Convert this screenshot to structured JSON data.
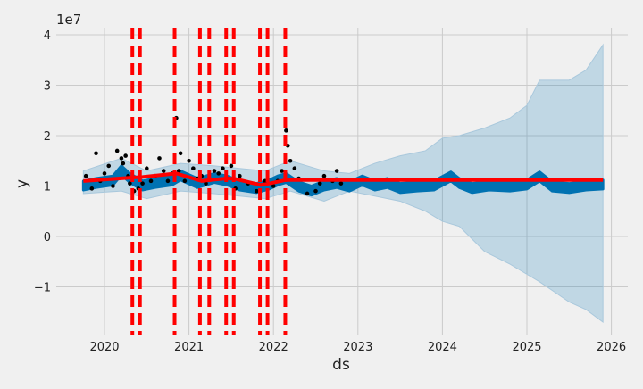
{
  "chart_data": {
    "type": "line",
    "title": "",
    "xlabel": "ds",
    "ylabel": "y",
    "y_scale_label": "1e7",
    "xlim": [
      2019.5,
      2026.2
    ],
    "ylim": [
      -1.95,
      4.15
    ],
    "y_unit": 10000000,
    "x_ticks": [
      2020,
      2021,
      2022,
      2023,
      2024,
      2025,
      2026
    ],
    "x_tick_labels": [
      "2020",
      "2021",
      "2022",
      "2023",
      "2024",
      "2025",
      "2026"
    ],
    "y_ticks": [
      -1,
      0,
      1,
      2,
      3,
      4
    ],
    "y_tick_labels": [
      "−1",
      "0",
      "1",
      "2",
      "3",
      "4"
    ],
    "grid": true,
    "legend": null,
    "colors": {
      "background": "#f0f0f0",
      "grid": "#cbcbcb",
      "observed": "#000000",
      "forecast": "#0072b2",
      "uncertainty": "#0072b2",
      "uncertainty_opacity": 0.2,
      "trend": "#ff0000",
      "changepoint": "#ff0000"
    },
    "series": [
      {
        "name": "trend",
        "x": [
          2019.75,
          2020.35,
          2020.45,
          2020.85,
          2021.15,
          2021.25,
          2021.45,
          2021.55,
          2021.85,
          2021.95,
          2022.15,
          2025.9
        ],
        "values": [
          1.1,
          1.17,
          1.18,
          1.25,
          1.1,
          1.12,
          1.15,
          1.14,
          1.02,
          1.05,
          1.12,
          1.12
        ]
      },
      {
        "name": "yhat",
        "x": [
          2019.75,
          2019.9,
          2020.1,
          2020.2,
          2020.3,
          2020.45,
          2020.6,
          2020.8,
          2020.9,
          2021.1,
          2021.2,
          2021.3,
          2021.45,
          2021.6,
          2021.8,
          2021.95,
          2022.05,
          2022.15,
          2022.3,
          2022.45,
          2022.6,
          2022.75,
          2022.9,
          2023.05,
          2023.2,
          2023.35,
          2023.5,
          2023.7,
          2023.9,
          2024.1,
          2024.2,
          2024.35,
          2024.55,
          2024.8,
          2025.0,
          2025.15,
          2025.3,
          2025.5,
          2025.7,
          2025.9
        ],
        "values": [
          1.1,
          1.15,
          1.2,
          1.4,
          1.25,
          1.1,
          1.15,
          1.2,
          1.3,
          1.15,
          1.2,
          1.25,
          1.2,
          1.1,
          1.05,
          1.12,
          1.2,
          1.25,
          1.08,
          1.0,
          1.1,
          1.15,
          1.08,
          1.2,
          1.1,
          1.15,
          1.05,
          1.08,
          1.1,
          1.28,
          1.15,
          1.05,
          1.1,
          1.08,
          1.12,
          1.28,
          1.08,
          1.05,
          1.1,
          1.12
        ]
      },
      {
        "name": "yhat_upper",
        "x": [
          2019.75,
          2020.2,
          2020.5,
          2020.9,
          2021.3,
          2021.6,
          2021.9,
          2022.2,
          2022.6,
          2022.9,
          2023.2,
          2023.5,
          2023.8,
          2024.0,
          2024.2,
          2024.5,
          2024.8,
          2025.0,
          2025.15,
          2025.5,
          2025.7,
          2025.9
        ],
        "values": [
          1.3,
          1.55,
          1.3,
          1.45,
          1.4,
          1.35,
          1.3,
          1.5,
          1.3,
          1.25,
          1.45,
          1.6,
          1.7,
          1.95,
          2.0,
          2.15,
          2.35,
          2.6,
          3.1,
          3.1,
          3.3,
          3.8
        ]
      },
      {
        "name": "yhat_lower",
        "x": [
          2019.75,
          2020.2,
          2020.5,
          2020.9,
          2021.3,
          2021.6,
          2021.9,
          2022.2,
          2022.6,
          2022.9,
          2023.2,
          2023.5,
          2023.8,
          2024.0,
          2024.2,
          2024.5,
          2024.8,
          2025.0,
          2025.15,
          2025.5,
          2025.7,
          2025.9
        ],
        "values": [
          0.85,
          0.9,
          0.75,
          0.9,
          0.85,
          0.8,
          0.75,
          0.9,
          0.7,
          0.9,
          0.8,
          0.7,
          0.5,
          0.3,
          0.2,
          -0.3,
          -0.55,
          -0.75,
          -0.9,
          -1.3,
          -1.45,
          -1.7
        ]
      },
      {
        "name": "observed",
        "type": "scatter",
        "x": [
          2019.78,
          2019.85,
          2019.9,
          2019.95,
          2020.0,
          2020.05,
          2020.1,
          2020.15,
          2020.2,
          2020.22,
          2020.25,
          2020.28,
          2020.3,
          2020.35,
          2020.4,
          2020.45,
          2020.5,
          2020.55,
          2020.6,
          2020.65,
          2020.7,
          2020.75,
          2020.8,
          2020.85,
          2020.88,
          2020.9,
          2020.95,
          2021.0,
          2021.05,
          2021.1,
          2021.15,
          2021.2,
          2021.3,
          2021.35,
          2021.4,
          2021.45,
          2021.5,
          2021.55,
          2021.6,
          2021.7,
          2021.8,
          2021.9,
          2022.0,
          2022.05,
          2022.1,
          2022.15,
          2022.17,
          2022.2,
          2022.25,
          2022.3,
          2022.4,
          2022.5,
          2022.55,
          2022.6,
          2022.7,
          2022.75,
          2022.8
        ],
        "values": [
          1.2,
          0.95,
          1.65,
          1.1,
          1.25,
          1.4,
          1.0,
          1.7,
          1.55,
          1.45,
          1.6,
          1.2,
          1.05,
          0.9,
          0.95,
          1.05,
          1.35,
          1.1,
          1.2,
          1.55,
          1.3,
          1.1,
          1.25,
          2.35,
          1.3,
          1.65,
          1.1,
          1.5,
          1.35,
          1.15,
          1.2,
          1.05,
          1.3,
          1.25,
          1.35,
          1.15,
          1.4,
          0.95,
          1.2,
          1.05,
          0.9,
          1.1,
          1.0,
          1.1,
          1.3,
          2.1,
          1.8,
          1.5,
          1.35,
          1.15,
          0.85,
          0.9,
          1.05,
          1.2,
          1.1,
          1.3,
          1.05
        ]
      }
    ],
    "changepoints": [
      2020.33,
      2020.42,
      2020.83,
      2021.13,
      2021.24,
      2021.44,
      2021.53,
      2021.84,
      2021.93,
      2022.14
    ]
  }
}
